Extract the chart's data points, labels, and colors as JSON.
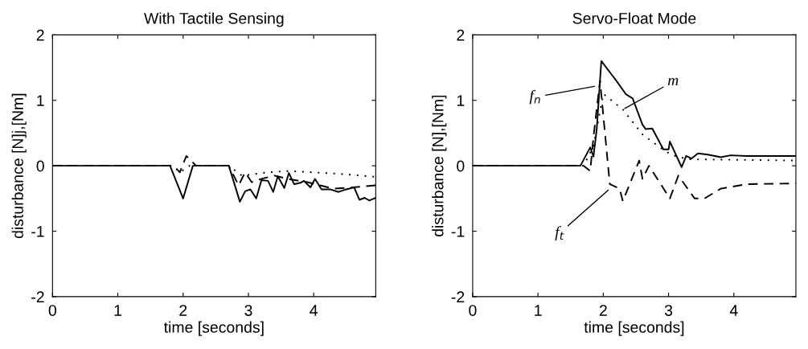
{
  "chart_data": [
    {
      "type": "line",
      "title": "With Tactile Sensing",
      "xlabel": "time [seconds]",
      "ylabel": "disturbance [N]j,[Nm]",
      "xlim": [
        0,
        4.95
      ],
      "ylim": [
        -2,
        2
      ],
      "xticks": [
        0,
        1,
        2,
        3,
        4
      ],
      "yticks": [
        -2,
        -1,
        0,
        1,
        2
      ],
      "grid": false,
      "legend": false,
      "series": [
        {
          "color": "#000000",
          "line_style": "solid",
          "x": [
            0,
            1.8,
            2.0,
            2.15,
            2.7,
            2.87,
            2.95,
            3.03,
            3.12,
            3.2,
            3.3,
            3.38,
            3.45,
            3.55,
            3.62,
            3.7,
            3.8,
            3.85,
            3.95,
            4.02,
            4.12,
            4.25,
            4.38,
            4.5,
            4.62,
            4.7,
            4.78,
            4.85,
            4.95
          ],
          "values": [
            0,
            0,
            -0.5,
            0,
            0,
            -0.55,
            -0.39,
            -0.36,
            -0.5,
            -0.22,
            -0.23,
            -0.4,
            -0.16,
            -0.34,
            -0.11,
            -0.28,
            -0.26,
            -0.23,
            -0.33,
            -0.2,
            -0.36,
            -0.36,
            -0.4,
            -0.36,
            -0.33,
            -0.52,
            -0.49,
            -0.53,
            -0.49
          ]
        },
        {
          "color": "#000000",
          "line_style": "dashed",
          "x": [
            0,
            1.85,
            1.95,
            2.05,
            2.2,
            2.7,
            2.85,
            2.95,
            3.05,
            3.2,
            3.4,
            3.6,
            3.9,
            4.1,
            4.3,
            4.6,
            4.95
          ],
          "values": [
            0,
            0,
            -0.1,
            0.15,
            0,
            0,
            -0.3,
            -0.1,
            -0.25,
            -0.2,
            -0.15,
            -0.2,
            -0.25,
            -0.3,
            -0.35,
            -0.33,
            -0.3
          ]
        },
        {
          "color": "#000000",
          "line_style": "dotted",
          "x": [
            0,
            1.85,
            1.95,
            2.1,
            2.7,
            2.9,
            3.3,
            3.6,
            4.0,
            4.5,
            4.95
          ],
          "values": [
            0,
            0,
            -0.1,
            0,
            0,
            -0.15,
            -0.1,
            -0.08,
            -0.1,
            -0.13,
            -0.17
          ]
        }
      ]
    },
    {
      "type": "line",
      "title": "Servo-Float Mode",
      "xlabel": "time [seconds]",
      "ylabel": "disturbance [N],[Nm]",
      "xlim": [
        0,
        4.95
      ],
      "ylim": [
        -2,
        2
      ],
      "xticks": [
        0,
        1,
        2,
        3,
        4
      ],
      "yticks": [
        -2,
        -1,
        0,
        1,
        2
      ],
      "grid": false,
      "legend": false,
      "annotations": [
        {
          "text": "f$_{n}$",
          "x": 1.9,
          "y": 1.22
        },
        {
          "text": "m",
          "x": 2.3,
          "y": 0.86
        },
        {
          "text": "f$_{t}$",
          "x": 2.1,
          "y": -0.35
        }
      ],
      "series": [
        {
          "color": "#000000",
          "line_style": "solid",
          "x": [
            0,
            1.65,
            1.8,
            1.85,
            1.9,
            1.97,
            2.2,
            2.35,
            2.45,
            2.6,
            2.65,
            2.75,
            2.92,
            3.0,
            3.02,
            3.2,
            3.27,
            3.35,
            3.45,
            3.6,
            3.8,
            3.95,
            4.2,
            4.95
          ],
          "values": [
            0,
            0,
            0.28,
            0.14,
            0.56,
            1.6,
            1.3,
            1.09,
            1.03,
            0.63,
            0.56,
            0.57,
            0.25,
            0.25,
            0.37,
            -0.02,
            0.15,
            0.11,
            0.19,
            0.17,
            0.13,
            0.16,
            0.15,
            0.15
          ]
        },
        {
          "color": "#000000",
          "line_style": "dashed",
          "x": [
            0,
            1.7,
            1.8,
            1.85,
            1.95,
            2.1,
            2.25,
            2.3,
            2.55,
            2.6,
            2.7,
            3.02,
            3.15,
            3.4,
            3.55,
            3.8,
            4.2,
            4.95
          ],
          "values": [
            0,
            0,
            -0.08,
            0.44,
            1.3,
            -0.28,
            -0.35,
            -0.54,
            0.08,
            -0.2,
            0,
            -0.5,
            -0.15,
            -0.5,
            -0.5,
            -0.35,
            -0.28,
            -0.27
          ]
        },
        {
          "color": "#000000",
          "line_style": "dotted",
          "x": [
            0,
            1.7,
            1.85,
            2.0,
            2.3,
            2.6,
            2.95,
            3.1,
            3.3,
            4.95
          ],
          "values": [
            0,
            0,
            0.3,
            1.1,
            0.86,
            0.48,
            0.22,
            0.15,
            0.1,
            0.08
          ]
        }
      ]
    }
  ]
}
